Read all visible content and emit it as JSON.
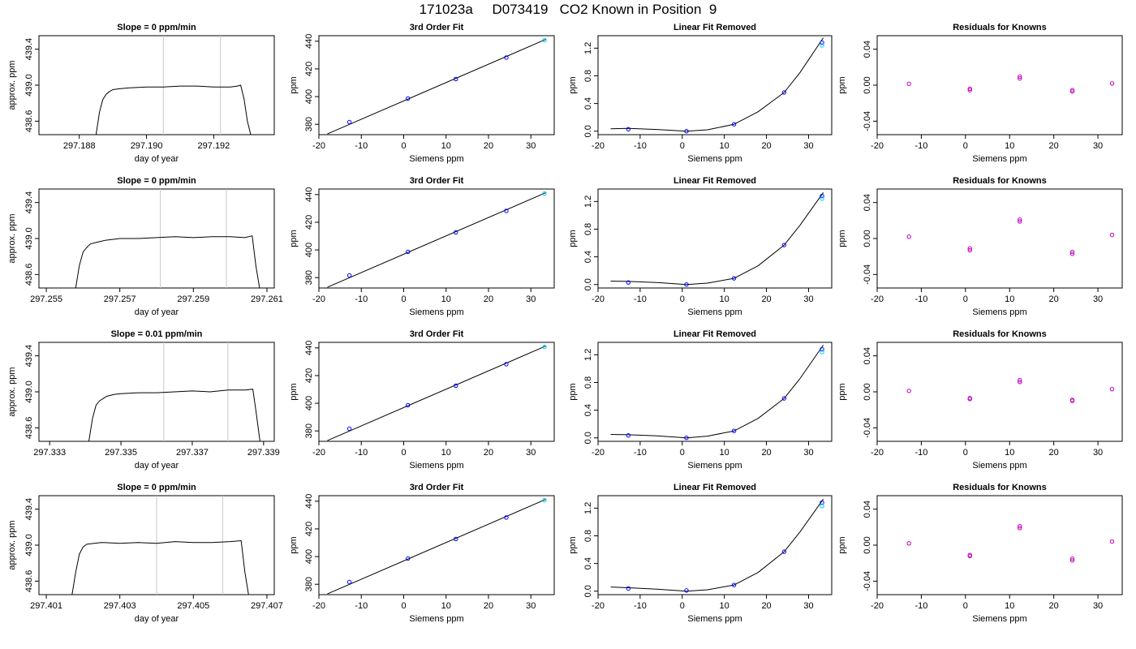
{
  "page_title": "171023a     D073419   CO2 Known in Position  9",
  "colors": {
    "line": "#000000",
    "vline": "#c8c8c8",
    "point_blue": "#0000ff",
    "point_cyan": "#00c8ff",
    "point_magenta": "#c000c0",
    "trace_red": "#ff0000"
  },
  "chart_data": [
    {
      "type": "line",
      "panel": "trace",
      "title": "Slope =  0  ppm/min",
      "xlabel": "day of year",
      "ylabel": "approx. ppm",
      "xlim": [
        297.1868,
        297.1938
      ],
      "ylim": [
        438.45,
        439.55
      ],
      "xticks": [
        297.188,
        297.19,
        297.192
      ],
      "xtick_labels": [
        "297.188",
        "297.190",
        "297.192"
      ],
      "yticks": [
        438.6,
        439.0,
        439.4
      ],
      "ytick_labels": [
        "438.6",
        "439.0",
        "439.4"
      ],
      "vlines": [
        297.1905,
        297.1922
      ],
      "x": [
        297.1885,
        297.1886,
        297.1887,
        297.1888,
        297.1889,
        297.189,
        297.1892,
        297.1895,
        297.19,
        297.1905,
        297.191,
        297.1915,
        297.192,
        297.1925,
        297.1927,
        297.1928,
        297.1929,
        297.193,
        297.1931
      ],
      "y": [
        438.45,
        438.7,
        438.84,
        438.9,
        438.93,
        438.95,
        438.96,
        438.97,
        438.98,
        438.98,
        438.99,
        438.99,
        438.98,
        438.98,
        438.99,
        439.0,
        438.85,
        438.6,
        438.45
      ]
    },
    {
      "type": "line",
      "panel": "fit",
      "title": "3rd Order Fit",
      "xlabel": "Siemens ppm",
      "ylabel": "ppm",
      "xlim": [
        -20,
        35.5
      ],
      "ylim": [
        372.5,
        444
      ],
      "xticks": [
        -20,
        -10,
        0,
        10,
        20,
        30
      ],
      "yticks": [
        380,
        400,
        420,
        440
      ],
      "curve_x": [
        -18,
        33.5
      ],
      "curve_y": [
        373,
        441.3
      ],
      "points": [
        [
          -12.8,
          381.6
        ],
        [
          1,
          398.6
        ],
        [
          12.3,
          412.7
        ],
        [
          24.2,
          428.2
        ],
        [
          33.2,
          440.7
        ]
      ]
    },
    {
      "type": "line",
      "panel": "linrem",
      "title": "Linear Fit Removed",
      "xlabel": "Siemens ppm",
      "ylabel": "ppm",
      "xlim": [
        -20,
        35.5
      ],
      "ylim": [
        -0.05,
        1.38
      ],
      "xticks": [
        -20,
        -10,
        0,
        10,
        20,
        30
      ],
      "yticks": [
        0.0,
        0.4,
        0.8,
        1.2
      ],
      "curve_x": [
        -17,
        -12.8,
        -6,
        1,
        6,
        12.3,
        18,
        24.2,
        28,
        33.5
      ],
      "curve_y": [
        0.035,
        0.04,
        0.025,
        0.0,
        0.02,
        0.1,
        0.28,
        0.56,
        0.85,
        1.35
      ],
      "points": [
        [
          -12.8,
          0.03
        ],
        [
          1,
          0.0
        ],
        [
          12.3,
          0.1
        ],
        [
          24.2,
          0.56
        ],
        [
          33.2,
          1.28
        ],
        [
          33.2,
          1.24
        ]
      ]
    },
    {
      "type": "scatter",
      "panel": "resid",
      "title": "Residuals for Knowns",
      "xlabel": "Siemens ppm",
      "ylabel": "ppm",
      "xlim": [
        -20,
        35.5
      ],
      "ylim": [
        -0.055,
        0.055
      ],
      "xticks": [
        -20,
        -10,
        0,
        10,
        20,
        30
      ],
      "yticks": [
        -0.04,
        0.0,
        0.04
      ],
      "points": [
        [
          -12.8,
          0.0015
        ],
        [
          1,
          -0.004
        ],
        [
          1,
          -0.0055
        ],
        [
          12.3,
          0.0095
        ],
        [
          12.3,
          0.0075
        ],
        [
          24.2,
          -0.0055
        ],
        [
          24.2,
          -0.007
        ],
        [
          33.2,
          0.002
        ]
      ]
    },
    {
      "type": "line",
      "panel": "trace",
      "title": "Slope =  0  ppm/min",
      "xlabel": "day of year",
      "ylabel": "approx. ppm",
      "xlim": [
        297.2548,
        297.2612
      ],
      "ylim": [
        438.45,
        439.55
      ],
      "xticks": [
        297.255,
        297.257,
        297.259,
        297.261
      ],
      "xtick_labels": [
        "297.255",
        "297.257",
        "297.259",
        "297.261"
      ],
      "yticks": [
        438.6,
        439.0,
        439.4
      ],
      "ytick_labels": [
        "438.6",
        "439.0",
        "439.4"
      ],
      "vlines": [
        297.2581,
        297.2599
      ],
      "x": [
        297.2558,
        297.2559,
        297.256,
        297.2561,
        297.2562,
        297.2564,
        297.2566,
        297.257,
        297.2575,
        297.258,
        297.2585,
        297.259,
        297.2595,
        297.26,
        297.2604,
        297.2606,
        297.2607,
        297.2608
      ],
      "y": [
        438.45,
        438.7,
        438.85,
        438.9,
        438.94,
        438.96,
        438.98,
        439.0,
        439.0,
        439.01,
        439.02,
        439.01,
        439.02,
        439.02,
        439.01,
        439.03,
        438.7,
        438.45
      ]
    },
    {
      "type": "line",
      "panel": "fit",
      "title": "3rd Order Fit",
      "xlabel": "Siemens ppm",
      "ylabel": "ppm",
      "xlim": [
        -20,
        35.5
      ],
      "ylim": [
        372.5,
        444
      ],
      "xticks": [
        -20,
        -10,
        0,
        10,
        20,
        30
      ],
      "yticks": [
        380,
        400,
        420,
        440
      ],
      "curve_x": [
        -18,
        33.5
      ],
      "curve_y": [
        373,
        441.3
      ],
      "points": [
        [
          -12.8,
          381.6
        ],
        [
          1,
          398.6
        ],
        [
          12.3,
          412.7
        ],
        [
          24.2,
          428.2
        ],
        [
          33.2,
          440.7
        ]
      ]
    },
    {
      "type": "line",
      "panel": "linrem",
      "title": "Linear Fit Removed",
      "xlabel": "Siemens ppm",
      "ylabel": "ppm",
      "xlim": [
        -20,
        35.5
      ],
      "ylim": [
        -0.05,
        1.38
      ],
      "xticks": [
        -20,
        -10,
        0,
        10,
        20,
        30
      ],
      "yticks": [
        0.0,
        0.4,
        0.8,
        1.2
      ],
      "curve_x": [
        -17,
        -12.8,
        -6,
        1,
        6,
        12.3,
        18,
        24.2,
        28,
        33.5
      ],
      "curve_y": [
        0.05,
        0.045,
        0.03,
        0.0,
        0.02,
        0.09,
        0.27,
        0.57,
        0.86,
        1.33
      ],
      "points": [
        [
          -12.8,
          0.03
        ],
        [
          1,
          0.0
        ],
        [
          12.3,
          0.09
        ],
        [
          24.2,
          0.57
        ],
        [
          33.2,
          1.28
        ],
        [
          33.2,
          1.24
        ]
      ]
    },
    {
      "type": "scatter",
      "panel": "resid",
      "title": "Residuals for Knowns",
      "xlabel": "Siemens ppm",
      "ylabel": "ppm",
      "xlim": [
        -20,
        35.5
      ],
      "ylim": [
        -0.055,
        0.055
      ],
      "xticks": [
        -20,
        -10,
        0,
        10,
        20,
        30
      ],
      "yticks": [
        -0.04,
        0.0,
        0.04
      ],
      "points": [
        [
          -12.8,
          0.002
        ],
        [
          1,
          -0.011
        ],
        [
          1,
          -0.013
        ],
        [
          12.3,
          0.021
        ],
        [
          12.3,
          0.019
        ],
        [
          24.2,
          -0.015
        ],
        [
          24.2,
          -0.017
        ],
        [
          33.2,
          0.004
        ]
      ]
    },
    {
      "type": "line",
      "panel": "trace",
      "title": "Slope =  0.01  ppm/min",
      "xlabel": "day of year",
      "ylabel": "approx. ppm",
      "xlim": [
        297.3327,
        297.3393
      ],
      "ylim": [
        438.45,
        439.55
      ],
      "xticks": [
        297.333,
        297.335,
        297.337,
        297.339
      ],
      "xtick_labels": [
        "297.333",
        "297.335",
        "297.337",
        "297.339"
      ],
      "yticks": [
        438.6,
        439.0,
        439.4
      ],
      "ytick_labels": [
        "438.6",
        "439.0",
        "439.4"
      ],
      "vlines": [
        297.3362,
        297.338
      ],
      "x": [
        297.3341,
        297.3342,
        297.3343,
        297.3344,
        297.3346,
        297.3348,
        297.335,
        297.3355,
        297.336,
        297.3365,
        297.337,
        297.3375,
        297.338,
        297.3385,
        297.3387,
        297.3388,
        297.3389
      ],
      "y": [
        438.45,
        438.7,
        438.85,
        438.9,
        438.95,
        438.97,
        438.98,
        438.99,
        438.99,
        439.0,
        439.01,
        439.0,
        439.02,
        439.02,
        439.03,
        438.75,
        438.45
      ]
    },
    {
      "type": "line",
      "panel": "fit",
      "title": "3rd Order Fit",
      "xlabel": "Siemens ppm",
      "ylabel": "ppm",
      "xlim": [
        -20,
        35.5
      ],
      "ylim": [
        372.5,
        444
      ],
      "xticks": [
        -20,
        -10,
        0,
        10,
        20,
        30
      ],
      "yticks": [
        380,
        400,
        420,
        440
      ],
      "curve_x": [
        -18,
        33.5
      ],
      "curve_y": [
        373,
        441.3
      ],
      "points": [
        [
          -12.8,
          381.6
        ],
        [
          1,
          398.6
        ],
        [
          12.3,
          412.7
        ],
        [
          24.2,
          428.2
        ],
        [
          33.2,
          440.7
        ]
      ]
    },
    {
      "type": "line",
      "panel": "linrem",
      "title": "Linear Fit Removed",
      "xlabel": "Siemens ppm",
      "ylabel": "ppm",
      "xlim": [
        -20,
        35.5
      ],
      "ylim": [
        -0.05,
        1.38
      ],
      "xticks": [
        -20,
        -10,
        0,
        10,
        20,
        30
      ],
      "yticks": [
        0.0,
        0.4,
        0.8,
        1.2
      ],
      "curve_x": [
        -17,
        -12.8,
        -6,
        1,
        6,
        12.3,
        18,
        24.2,
        28,
        33.5
      ],
      "curve_y": [
        0.05,
        0.045,
        0.03,
        0.0,
        0.025,
        0.1,
        0.28,
        0.57,
        0.86,
        1.34
      ],
      "points": [
        [
          -12.8,
          0.035
        ],
        [
          1,
          0.0
        ],
        [
          12.3,
          0.1
        ],
        [
          24.2,
          0.57
        ],
        [
          33.2,
          1.28
        ],
        [
          33.2,
          1.24
        ]
      ]
    },
    {
      "type": "scatter",
      "panel": "resid",
      "title": "Residuals for Knowns",
      "xlabel": "Siemens ppm",
      "ylabel": "ppm",
      "xlim": [
        -20,
        35.5
      ],
      "ylim": [
        -0.055,
        0.055
      ],
      "xticks": [
        -20,
        -10,
        0,
        10,
        20,
        30
      ],
      "yticks": [
        -0.04,
        0.0,
        0.04
      ],
      "points": [
        [
          -12.8,
          0.001
        ],
        [
          1,
          -0.007
        ],
        [
          1,
          -0.008
        ],
        [
          12.3,
          0.013
        ],
        [
          12.3,
          0.011
        ],
        [
          24.2,
          -0.009
        ],
        [
          24.2,
          -0.01
        ],
        [
          33.2,
          0.003
        ]
      ]
    },
    {
      "type": "line",
      "panel": "trace",
      "title": "Slope =  0  ppm/min",
      "xlabel": "day of year",
      "ylabel": "approx. ppm",
      "xlim": [
        297.4008,
        297.4072
      ],
      "ylim": [
        438.45,
        439.55
      ],
      "xticks": [
        297.401,
        297.403,
        297.405,
        297.407
      ],
      "xtick_labels": [
        "297.401",
        "297.403",
        "297.405",
        "297.407"
      ],
      "yticks": [
        438.6,
        439.0,
        439.4
      ],
      "ytick_labels": [
        "438.6",
        "439.0",
        "439.4"
      ],
      "vlines": [
        297.404,
        297.4058
      ],
      "x": [
        297.4017,
        297.4018,
        297.4019,
        297.402,
        297.4021,
        297.4023,
        297.4025,
        297.403,
        297.4035,
        297.404,
        297.4045,
        297.405,
        297.4055,
        297.406,
        297.4063,
        297.4064,
        297.4065
      ],
      "y": [
        438.45,
        438.7,
        438.9,
        438.98,
        439.01,
        439.02,
        439.03,
        439.02,
        439.03,
        439.02,
        439.04,
        439.03,
        439.03,
        439.04,
        439.05,
        438.7,
        438.45
      ]
    },
    {
      "type": "line",
      "panel": "fit",
      "title": "3rd Order Fit",
      "xlabel": "Siemens ppm",
      "ylabel": "ppm",
      "xlim": [
        -20,
        35.5
      ],
      "ylim": [
        372.5,
        444
      ],
      "xticks": [
        -20,
        -10,
        0,
        10,
        20,
        30
      ],
      "yticks": [
        380,
        400,
        420,
        440
      ],
      "curve_x": [
        -18,
        33.5
      ],
      "curve_y": [
        373,
        441.3
      ],
      "points": [
        [
          -12.8,
          381.6
        ],
        [
          1,
          398.6
        ],
        [
          12.3,
          412.7
        ],
        [
          24.2,
          428.2
        ],
        [
          33.2,
          440.7
        ]
      ]
    },
    {
      "type": "line",
      "panel": "linrem",
      "title": "Linear Fit Removed",
      "xlabel": "Siemens ppm",
      "ylabel": "ppm",
      "xlim": [
        -20,
        35.5
      ],
      "ylim": [
        -0.05,
        1.38
      ],
      "xticks": [
        -20,
        -10,
        0,
        10,
        20,
        30
      ],
      "yticks": [
        0.0,
        0.4,
        0.8,
        1.2
      ],
      "curve_x": [
        -17,
        -12.8,
        -6,
        1,
        6,
        12.3,
        18,
        24.2,
        28,
        33.5
      ],
      "curve_y": [
        0.06,
        0.05,
        0.03,
        0.0,
        0.02,
        0.09,
        0.27,
        0.57,
        0.86,
        1.33
      ],
      "points": [
        [
          -12.8,
          0.04
        ],
        [
          1,
          0.01
        ],
        [
          12.3,
          0.09
        ],
        [
          24.2,
          0.57
        ],
        [
          33.2,
          1.28
        ],
        [
          33.2,
          1.23
        ]
      ]
    },
    {
      "type": "scatter",
      "panel": "resid",
      "title": "Residuals for Knowns",
      "xlabel": "Siemens ppm",
      "ylabel": "ppm",
      "xlim": [
        -20,
        35.5
      ],
      "ylim": [
        -0.055,
        0.055
      ],
      "xticks": [
        -20,
        -10,
        0,
        10,
        20,
        30
      ],
      "yticks": [
        -0.04,
        0.0,
        0.04
      ],
      "points": [
        [
          -12.8,
          0.002
        ],
        [
          1,
          -0.011
        ],
        [
          1,
          -0.012
        ],
        [
          12.3,
          0.021
        ],
        [
          12.3,
          0.019
        ],
        [
          24.2,
          -0.015
        ],
        [
          24.2,
          -0.017
        ],
        [
          33.2,
          0.004
        ]
      ]
    }
  ]
}
